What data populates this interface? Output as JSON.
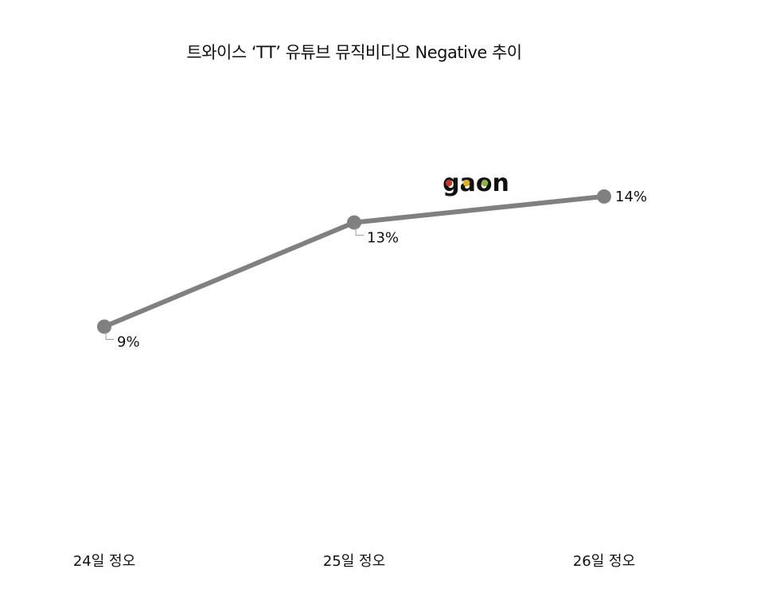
{
  "chart_data": {
    "type": "line",
    "title": "트와이스 ‘TT’ 유튜브 뮤직비디오 Negative 추이",
    "categories": [
      "24일 정오",
      "25일 정오",
      "26일 정오"
    ],
    "series": [
      {
        "values": [
          9,
          13,
          14
        ]
      }
    ],
    "data_labels": [
      "9%",
      "13%",
      "14%"
    ],
    "value_unit": "%",
    "ylim": [
      0,
      19.1
    ],
    "grid": false,
    "legend": "none",
    "line_color": "#808080",
    "watermark": "gaon"
  },
  "colors": {
    "line": "#808080",
    "text": "#111111",
    "leader": "#9a9a9a",
    "logo_ring_1": "#c0392b",
    "logo_ring_2": "#e0b020",
    "logo_ring_3": "#8cb43c"
  }
}
